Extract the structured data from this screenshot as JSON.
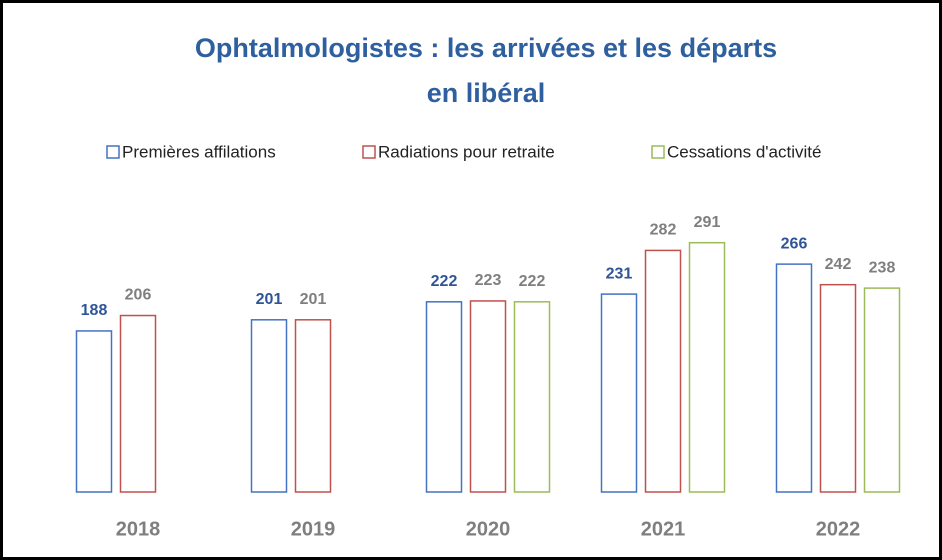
{
  "chart_data": {
    "type": "bar",
    "title": [
      "Ophtalmologistes : les arrivées et les départs",
      "en libéral"
    ],
    "categories": [
      "2018",
      "2019",
      "2020",
      "2021",
      "2022"
    ],
    "series": [
      {
        "name": "Premières affilations",
        "color": "#4472c4",
        "label_color": "#2f5597",
        "values": [
          188,
          201,
          222,
          231,
          266
        ]
      },
      {
        "name": "Radiations pour retraite",
        "color": "#c0504d",
        "label_color": "#7f7f7f",
        "values": [
          206,
          201,
          223,
          282,
          242
        ]
      },
      {
        "name": "Cessations d'activité",
        "color": "#9bbb59",
        "label_color": "#7f7f7f",
        "values": [
          null,
          null,
          222,
          291,
          238
        ]
      }
    ],
    "ylim": [
      0,
      300
    ]
  }
}
